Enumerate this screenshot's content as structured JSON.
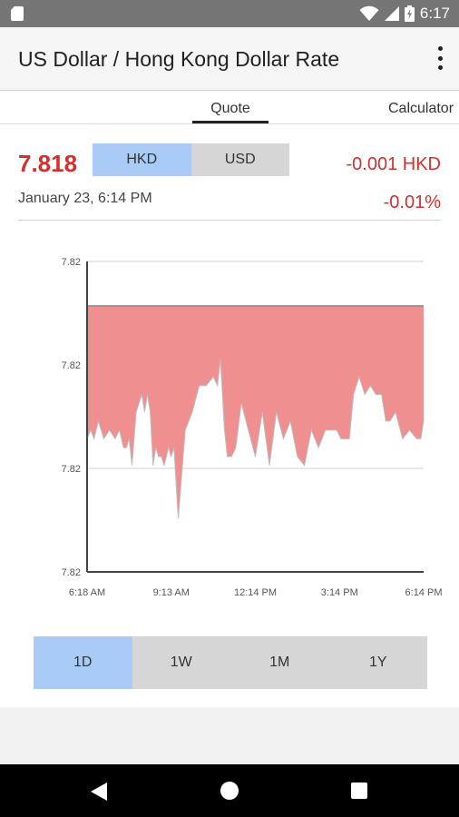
{
  "status_bar": {
    "time": "6:17"
  },
  "app_bar": {
    "title": "US Dollar / Hong Kong Dollar Rate"
  },
  "tabs": [
    {
      "label": "Quote",
      "selected": true
    },
    {
      "label": "Calculator",
      "selected": false
    }
  ],
  "quote": {
    "rate": "7.818",
    "currency_toggle": [
      {
        "label": "HKD",
        "selected": true
      },
      {
        "label": "USD",
        "selected": false
      }
    ],
    "change": "-0.001 HKD",
    "change_percent": "-0.01%",
    "timestamp": "January 23, 6:14 PM"
  },
  "colors": {
    "accent_red": "#d32f2f",
    "chart_fill": "#ef8f8f",
    "selected_blue": "#a9cbf5",
    "unselected_gray": "#d6d6d6"
  },
  "chart_data": {
    "type": "area",
    "x_tick_labels": [
      "6:18 AM",
      "9:13 AM",
      "12:14 PM",
      "3:14 PM",
      "6:14 PM"
    ],
    "y_tick_labels": [
      "7.82",
      "7.82",
      "7.82",
      "7.82"
    ],
    "x": [
      0,
      0.25,
      0.5,
      0.8,
      1.2,
      1.6,
      2.0,
      2.3,
      2.6,
      2.8,
      3.0,
      3.2,
      3.5,
      3.9,
      4.1,
      4.3,
      4.5,
      4.7,
      4.9,
      5.1,
      5.3,
      5.5,
      5.8,
      6.0,
      6.2,
      6.5,
      7.0,
      7.5,
      8.0,
      8.5,
      9.0,
      9.3,
      9.5,
      9.8,
      10.0,
      10.3,
      10.6,
      11.0,
      11.5,
      12.0,
      12.5,
      13.0,
      13.5,
      14.0,
      14.5,
      15.0,
      15.5,
      16.0,
      16.5,
      17.0,
      17.4,
      17.8,
      18.1,
      18.4,
      18.7,
      19.0,
      19.4,
      19.8,
      20.2,
      20.6,
      21.0,
      21.3,
      21.6,
      22.0,
      22.5,
      23.0,
      23.5,
      23.8,
      24.0
    ],
    "y": [
      7.8187,
      7.8188,
      7.8187,
      7.8189,
      7.8187,
      7.8188,
      7.8187,
      7.8188,
      7.8186,
      7.8186,
      7.8187,
      7.8184,
      7.819,
      7.8192,
      7.819,
      7.8192,
      7.819,
      7.8184,
      7.8186,
      7.8185,
      7.8185,
      7.8184,
      7.8186,
      7.8185,
      7.8186,
      7.8178,
      7.8188,
      7.819,
      7.8193,
      7.8193,
      7.8194,
      7.8193,
      7.8196,
      7.8188,
      7.8185,
      7.8185,
      7.8186,
      7.8191,
      7.8188,
      7.8185,
      7.819,
      7.8184,
      7.819,
      7.8187,
      7.8189,
      7.8185,
      7.8184,
      7.8188,
      7.8186,
      7.8188,
      7.8188,
      7.8188,
      7.8187,
      7.8187,
      7.8187,
      7.8192,
      7.8194,
      7.8192,
      7.8193,
      7.8192,
      7.8192,
      7.8189,
      7.8189,
      7.819,
      7.8187,
      7.8188,
      7.8187,
      7.8187,
      7.8189
    ],
    "reference_value": 7.8202,
    "ylim": [
      7.8172,
      7.8207
    ],
    "xlim": [
      0,
      24
    ],
    "grid": true,
    "xlabel": "",
    "ylabel": "",
    "title": ""
  },
  "range_buttons": [
    {
      "label": "1D",
      "selected": true
    },
    {
      "label": "1W",
      "selected": false
    },
    {
      "label": "1M",
      "selected": false
    },
    {
      "label": "1Y",
      "selected": false
    }
  ]
}
